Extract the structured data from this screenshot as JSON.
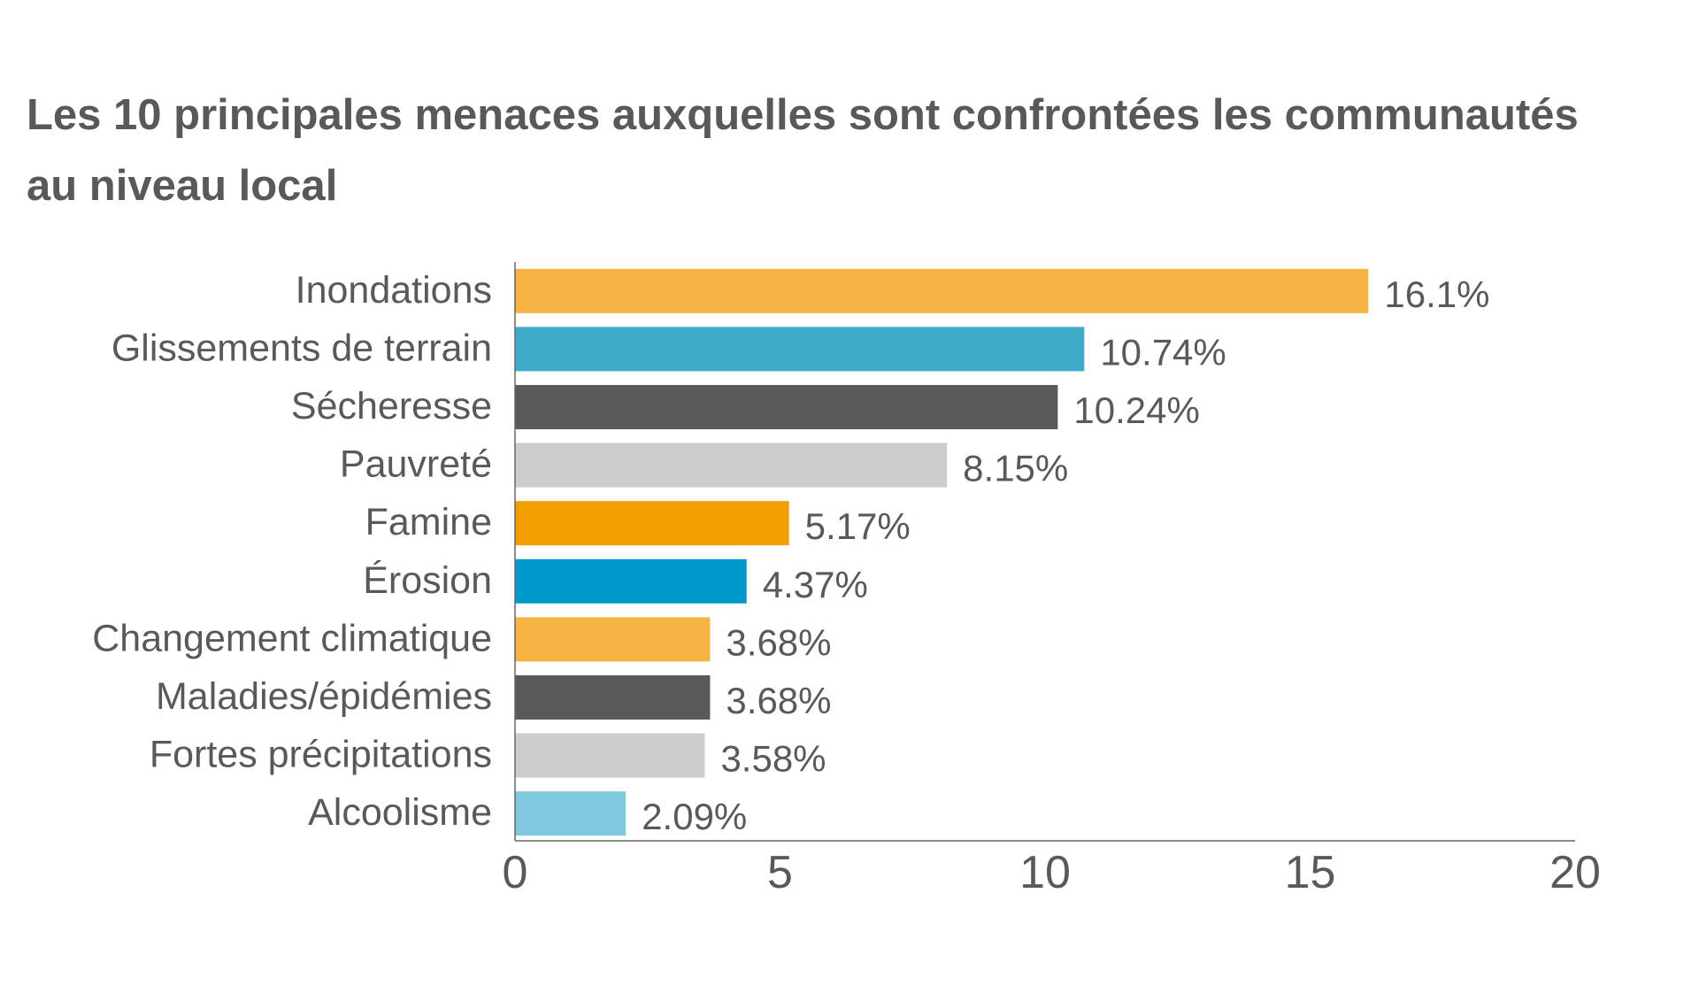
{
  "chart_data": {
    "type": "bar",
    "orientation": "horizontal",
    "title_lines": [
      "Les 10 principales menaces auxquelles sont confrontées les communautés",
      "au niveau local"
    ],
    "categories": [
      "Inondations",
      "Glissements de terrain",
      "Sécheresse",
      "Pauvreté",
      "Famine",
      "Érosion",
      "Changement climatique",
      "Maladies/épidémies",
      "Fortes précipitations",
      "Alcoolisme"
    ],
    "values": [
      16.1,
      10.74,
      10.24,
      8.15,
      5.17,
      4.37,
      3.68,
      3.68,
      3.58,
      2.09
    ],
    "value_labels": [
      "16.1%",
      "10.74%",
      "10.24%",
      "8.15%",
      "5.17%",
      "4.37%",
      "3.68%",
      "3.68%",
      "3.58%",
      "2.09%"
    ],
    "colors": [
      "#f6b443",
      "#3fabc8",
      "#58595b",
      "#cccccc",
      "#f29d00",
      "#0099cc",
      "#f6b443",
      "#58595b",
      "#cccccc",
      "#7fc8dd"
    ],
    "xlim": [
      0,
      20
    ],
    "xticks": [
      "0",
      "5",
      "10",
      "15",
      "20"
    ],
    "xlabel": "",
    "ylabel": "",
    "grid": false,
    "legend": "none"
  }
}
